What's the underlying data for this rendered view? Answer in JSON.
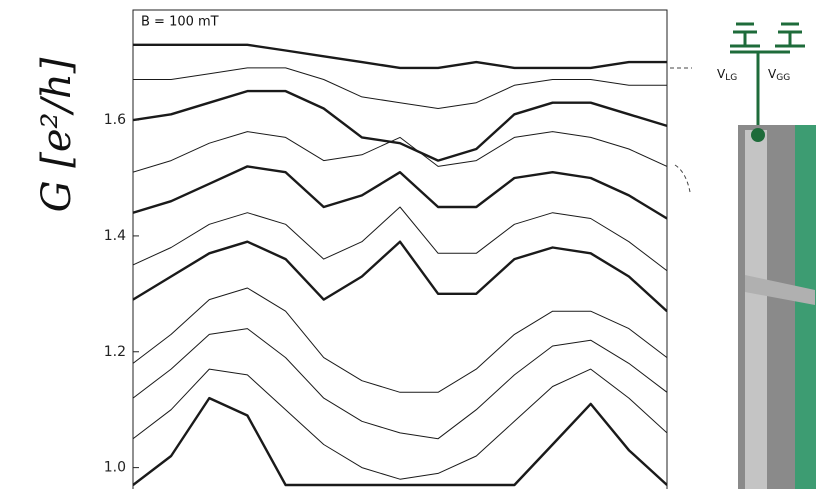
{
  "chart_data": {
    "type": "line",
    "annotation": "B = 100 mT",
    "y_label": "G [e²/h]",
    "categories": [
      null,
      null,
      null,
      null,
      null,
      null,
      null,
      null,
      null,
      null,
      null,
      null,
      null,
      null,
      null
    ],
    "ylim": [
      0.97,
      1.79
    ],
    "yticks": [
      {
        "value": 1,
        "label": "1.0"
      },
      1.2,
      1.4,
      1.6
    ],
    "series": [
      {
        "color": "#1a1a1a",
        "bold": true,
        "values": [
          0.97,
          1.02,
          1.12,
          1.09,
          0.97,
          0.97,
          0.97,
          0.97,
          0.97,
          0.97,
          0.97,
          1.04,
          1.11,
          1.03,
          0.97
        ]
      },
      {
        "color": "#1a1a1a",
        "bold": false,
        "values": [
          1.05,
          1.1,
          1.17,
          1.16,
          1.1,
          1.04,
          1.0,
          0.98,
          0.99,
          1.02,
          1.08,
          1.14,
          1.17,
          1.12,
          1.06
        ]
      },
      {
        "color": "#1a1a1a",
        "bold": false,
        "values": [
          1.12,
          1.17,
          1.23,
          1.24,
          1.19,
          1.12,
          1.08,
          1.06,
          1.05,
          1.1,
          1.16,
          1.21,
          1.22,
          1.18,
          1.13
        ]
      },
      {
        "color": "#1a1a1a",
        "bold": false,
        "values": [
          1.18,
          1.23,
          1.29,
          1.31,
          1.27,
          1.19,
          1.15,
          1.13,
          1.13,
          1.17,
          1.23,
          1.27,
          1.27,
          1.24,
          1.19
        ]
      },
      {
        "color": "#1a1a1a",
        "bold": true,
        "values": [
          1.29,
          1.33,
          1.37,
          1.39,
          1.36,
          1.29,
          1.33,
          1.39,
          1.3,
          1.3,
          1.36,
          1.38,
          1.37,
          1.33,
          1.27
        ]
      },
      {
        "color": "#1a1a1a",
        "bold": false,
        "values": [
          1.35,
          1.38,
          1.42,
          1.44,
          1.42,
          1.36,
          1.39,
          1.45,
          1.37,
          1.37,
          1.42,
          1.44,
          1.43,
          1.39,
          1.34
        ]
      },
      {
        "color": "#1a1a1a",
        "bold": true,
        "values": [
          1.44,
          1.46,
          1.49,
          1.52,
          1.51,
          1.45,
          1.47,
          1.51,
          1.45,
          1.45,
          1.5,
          1.51,
          1.5,
          1.47,
          1.43
        ]
      },
      {
        "color": "#1a1a1a",
        "bold": false,
        "values": [
          1.51,
          1.53,
          1.56,
          1.58,
          1.57,
          1.53,
          1.54,
          1.57,
          1.52,
          1.53,
          1.57,
          1.58,
          1.57,
          1.55,
          1.52
        ]
      },
      {
        "color": "#1a1a1a",
        "bold": true,
        "values": [
          1.6,
          1.61,
          1.63,
          1.65,
          1.65,
          1.62,
          1.57,
          1.56,
          1.53,
          1.55,
          1.61,
          1.63,
          1.63,
          1.61,
          1.59
        ]
      },
      {
        "color": "#1a1a1a",
        "bold": false,
        "values": [
          1.67,
          1.67,
          1.68,
          1.69,
          1.69,
          1.67,
          1.64,
          1.63,
          1.62,
          1.63,
          1.66,
          1.67,
          1.67,
          1.66,
          1.66
        ]
      },
      {
        "color": "#1a1a1a",
        "bold": true,
        "values": [
          1.73,
          1.73,
          1.73,
          1.73,
          1.72,
          1.71,
          1.7,
          1.69,
          1.69,
          1.7,
          1.69,
          1.69,
          1.69,
          1.7,
          1.7
        ]
      }
    ]
  },
  "diagram": {
    "gates": [
      {
        "main": "V",
        "sub": "LG"
      },
      {
        "main": "V",
        "sub": "GG"
      }
    ]
  }
}
